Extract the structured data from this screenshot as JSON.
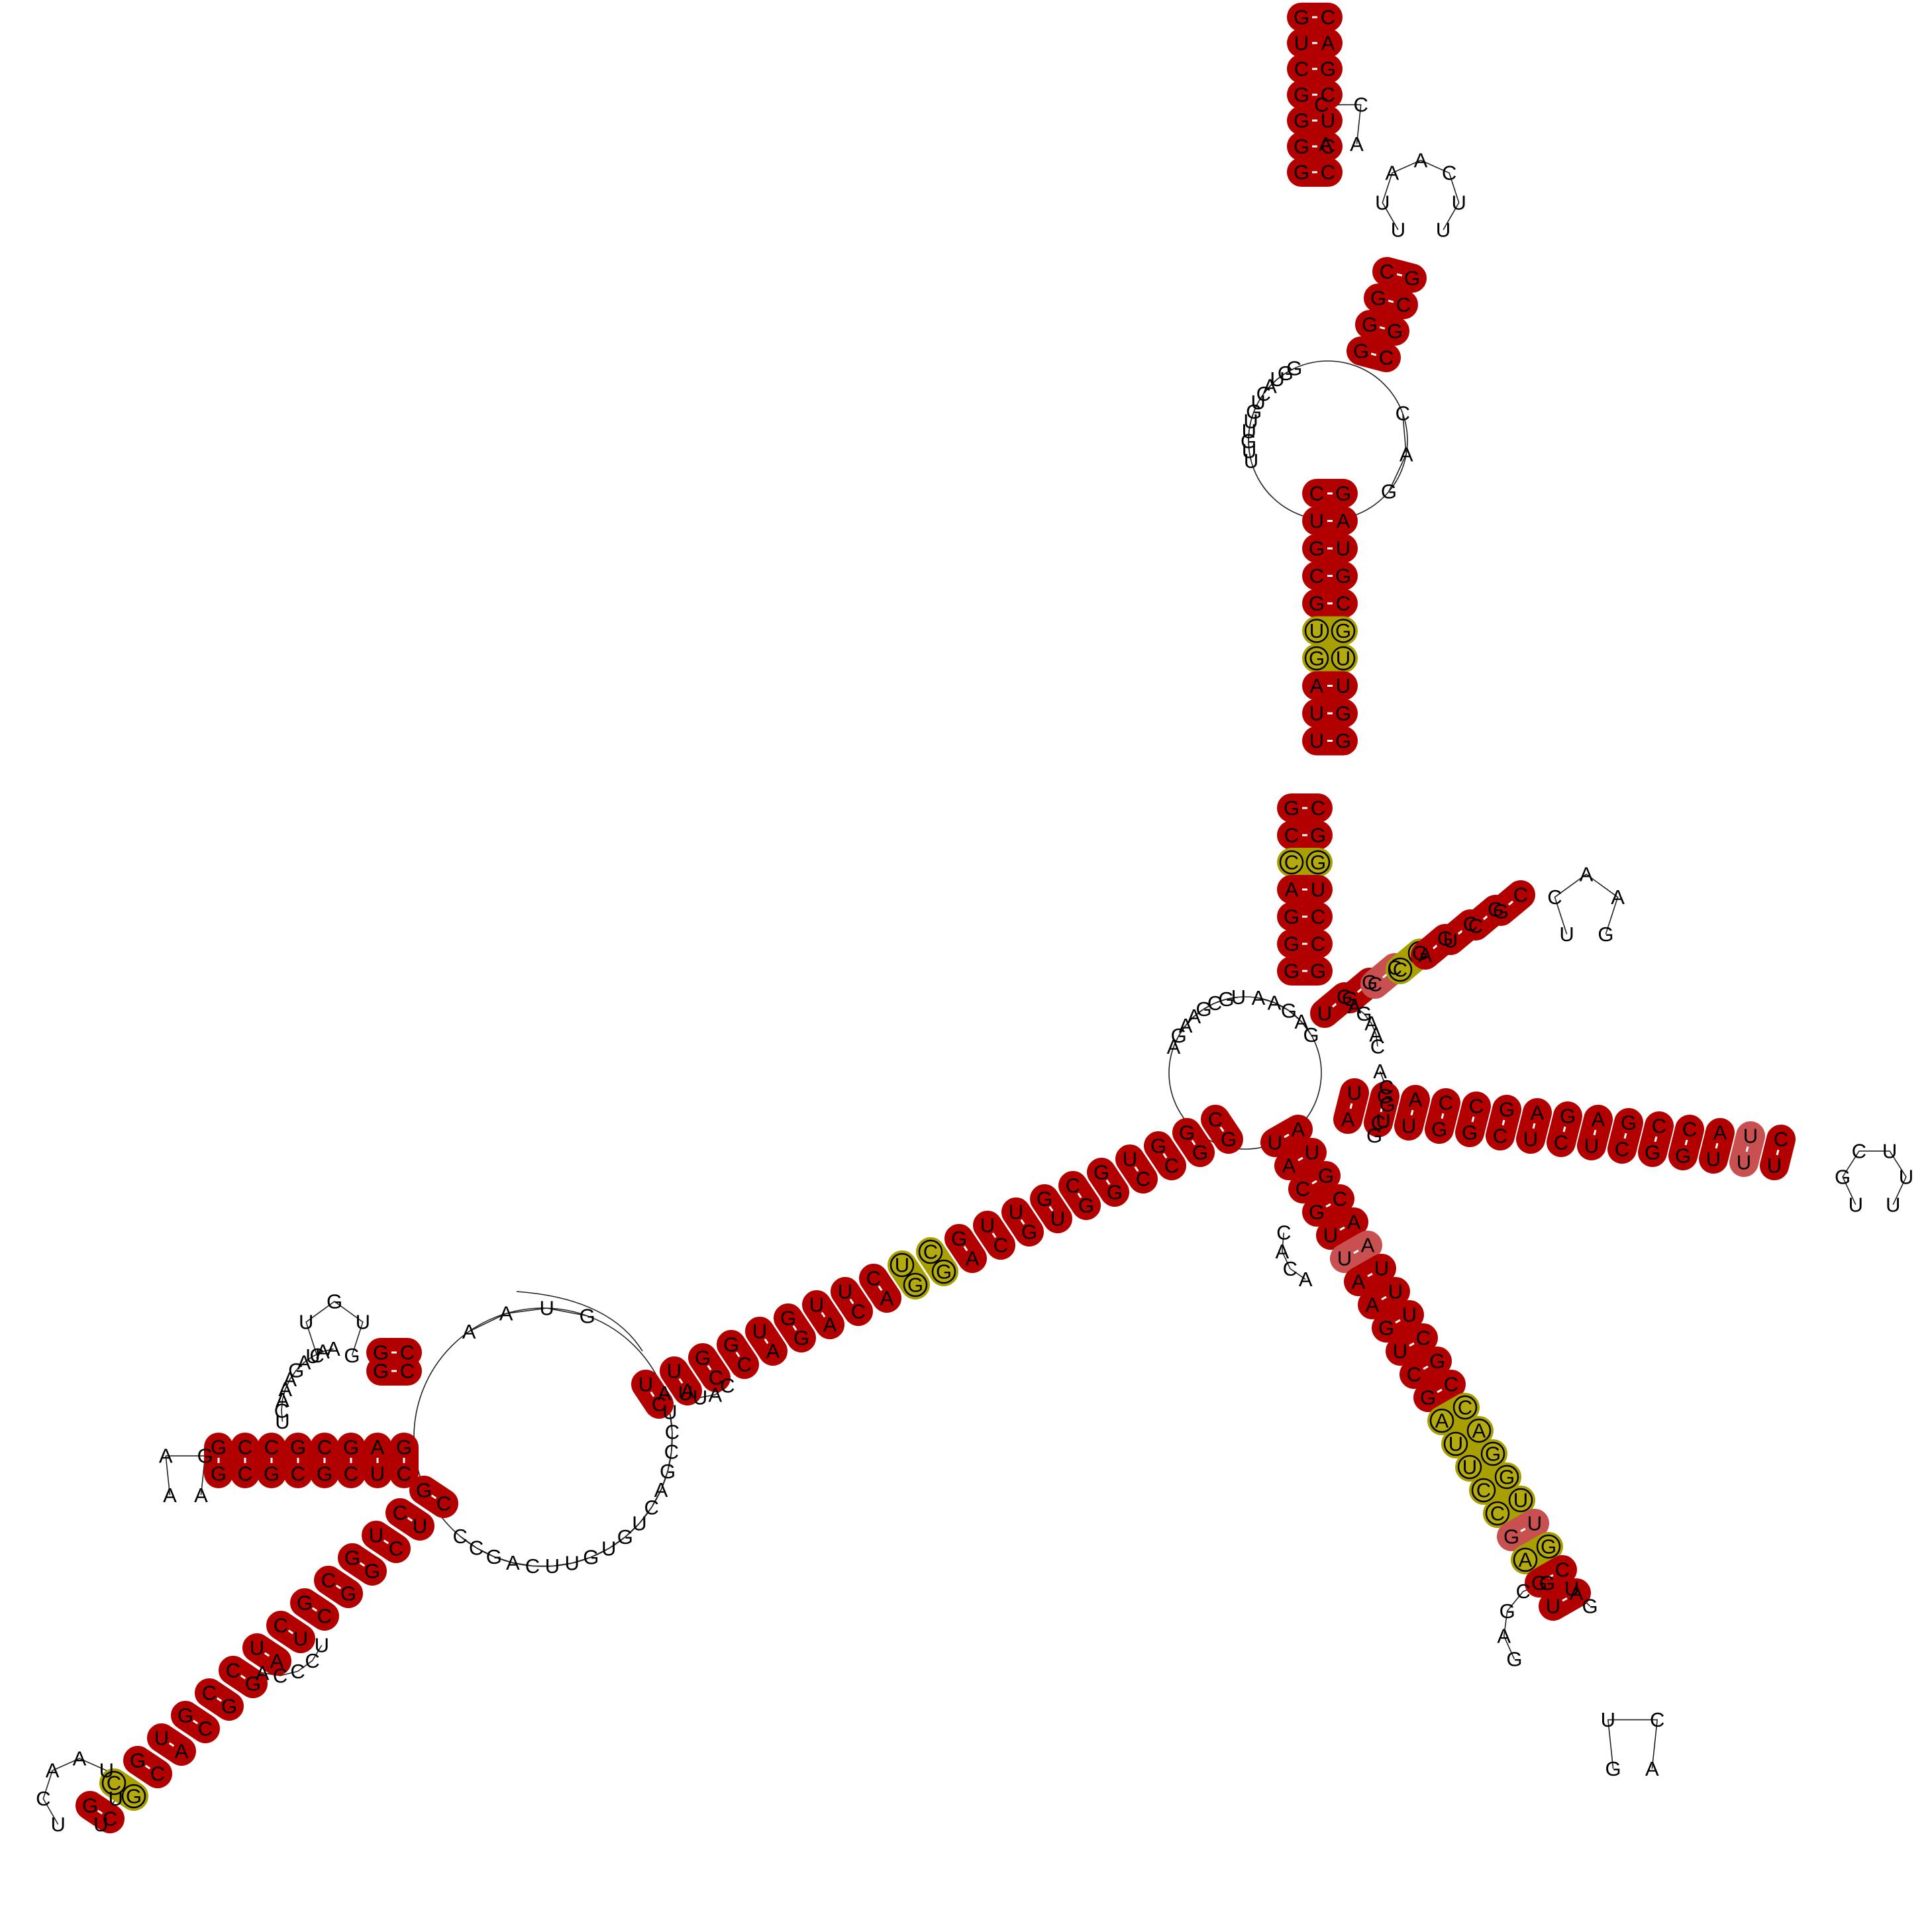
{
  "colors": {
    "pair": "#b20000",
    "weak_pair": "#c85050",
    "gu_pair": "#a8a000",
    "background": "#ffffff",
    "backbone": "#222222"
  },
  "helices": [
    {
      "id": "upper-hairpin-left",
      "pairs": [
        [
          "G",
          "C"
        ],
        [
          "G",
          "C"
        ],
        [
          "G",
          "U"
        ],
        [
          "G",
          "C"
        ],
        [
          "C",
          "G"
        ],
        [
          "U",
          "A"
        ],
        [
          "G",
          "C"
        ]
      ],
      "styles": [
        "full",
        "full",
        "full",
        "full",
        "full",
        "full",
        "full"
      ],
      "loop": "ACCA"
    },
    {
      "id": "upper-hairpin-right",
      "pairs": [
        [
          "G",
          "C"
        ],
        [
          "G",
          "G"
        ],
        [
          "G",
          "C"
        ],
        [
          "C",
          "G"
        ]
      ],
      "styles": [
        "full",
        "full",
        "full",
        "full"
      ],
      "loop": "UUAACUU"
    },
    {
      "id": "upper-stem-top",
      "pairs": [
        [
          "C",
          "G"
        ],
        [
          "U",
          "A"
        ],
        [
          "G",
          "U"
        ],
        [
          "C",
          "G"
        ],
        [
          "G",
          "C"
        ],
        [
          "U",
          "G"
        ],
        [
          "G",
          "U"
        ],
        [
          "A",
          "U"
        ],
        [
          "U",
          "G"
        ],
        [
          "U",
          "G"
        ]
      ],
      "styles": [
        "full",
        "full",
        "full",
        "full",
        "full",
        "gu",
        "gu",
        "full",
        "full",
        "full"
      ],
      "loop": ""
    },
    {
      "id": "upper-stem-bottom",
      "pairs": [
        [
          "G",
          "C"
        ],
        [
          "C",
          "G"
        ],
        [
          "C",
          "G"
        ],
        [
          "A",
          "U"
        ],
        [
          "G",
          "C"
        ],
        [
          "G",
          "C"
        ],
        [
          "G",
          "G"
        ]
      ],
      "styles": [
        "full",
        "full",
        "gu",
        "full",
        "full",
        "full",
        "full"
      ],
      "loop": ""
    },
    {
      "id": "right-upper-hairpin",
      "pairs": [
        [
          "U",
          "G"
        ],
        [
          "G",
          "G"
        ],
        [
          "C",
          "C"
        ],
        [
          "C",
          "G"
        ],
        [
          "A",
          "G"
        ],
        [
          "U",
          "C"
        ],
        [
          "C",
          "G"
        ],
        [
          "G",
          "C"
        ]
      ],
      "styles": [
        "full",
        "full",
        "light",
        "gu",
        "full",
        "full",
        "full",
        "full"
      ],
      "loop": "UCAAG"
    },
    {
      "id": "right-hairpin",
      "pairs": [
        [
          "U",
          "A"
        ],
        [
          "G",
          "C"
        ],
        [
          "A",
          "U"
        ],
        [
          "C",
          "G"
        ],
        [
          "C",
          "G"
        ],
        [
          "G",
          "C"
        ],
        [
          "A",
          "U"
        ],
        [
          "G",
          "C"
        ],
        [
          "A",
          "U"
        ],
        [
          "G",
          "C"
        ],
        [
          "C",
          "G"
        ],
        [
          "C",
          "G"
        ],
        [
          "A",
          "U"
        ],
        [
          "U",
          "U"
        ],
        [
          "C",
          "U"
        ]
      ],
      "styles": [
        "full",
        "full",
        "full",
        "full",
        "full",
        "full",
        "full",
        "full",
        "full",
        "full",
        "full",
        "full",
        "full",
        "light",
        "full"
      ],
      "loop": "UGCUUU"
    },
    {
      "id": "lower-right-hairpin",
      "pairs": [
        [
          "U",
          "A"
        ],
        [
          "A",
          "U"
        ],
        [
          "C",
          "G"
        ],
        [
          "G",
          "C"
        ],
        [
          "U",
          "A"
        ],
        [
          "U",
          "A"
        ],
        [
          "A",
          "U"
        ],
        [
          "A",
          "U"
        ],
        [
          "G",
          "U"
        ],
        [
          "U",
          "C"
        ],
        [
          "C",
          "G"
        ],
        [
          "G",
          "C"
        ],
        [
          "A",
          "C"
        ],
        [
          "U",
          "A"
        ],
        [
          "U",
          "G"
        ],
        [
          "C",
          "G"
        ],
        [
          "C",
          "U"
        ],
        [
          "G",
          "U"
        ],
        [
          "A",
          "G"
        ],
        [
          "G",
          "C"
        ],
        [
          "U",
          "A"
        ]
      ],
      "styles": [
        "full",
        "full",
        "full",
        "full",
        "full",
        "light",
        "full",
        "full",
        "full",
        "full",
        "full",
        "full",
        "gu",
        "gu",
        "gu",
        "gu",
        "gu",
        "light",
        "gu",
        "full",
        "full"
      ],
      "loop": "GUCA"
    },
    {
      "id": "long-left-stem",
      "pairs": [
        [
          "G",
          "C"
        ],
        [
          "G",
          "G"
        ],
        [
          "C",
          "G"
        ],
        [
          "C",
          "U"
        ],
        [
          "G",
          "G"
        ],
        [
          "G",
          "C"
        ],
        [
          "U",
          "G"
        ],
        [
          "G",
          "U"
        ],
        [
          "C",
          "U"
        ],
        [
          "A",
          "G"
        ],
        [
          "G",
          "C"
        ],
        [
          "G",
          "U"
        ],
        [
          "A",
          "C"
        ],
        [
          "C",
          "U"
        ],
        [
          "A",
          "U"
        ],
        [
          "G",
          "G"
        ],
        [
          "A",
          "U"
        ],
        [
          "C",
          "G"
        ],
        [
          "C",
          "G"
        ],
        [
          "A",
          "U"
        ],
        [
          "C",
          "U"
        ]
      ],
      "styles": [
        "full",
        "full",
        "full",
        "full",
        "full",
        "full",
        "full",
        "full",
        "full",
        "full",
        "gu",
        "gu",
        "full",
        "full",
        "full",
        "full",
        "full",
        "full",
        "full",
        "full",
        "full"
      ],
      "loop": ""
    },
    {
      "id": "left-upper-hairpin",
      "pairs": [
        [
          "G",
          "C"
        ],
        [
          "G",
          "C"
        ]
      ],
      "styles": [
        "full",
        "full"
      ],
      "loop": "CUGUG"
    },
    {
      "id": "left-middle-hairpin",
      "pairs": [
        [
          "G",
          "C"
        ],
        [
          "A",
          "U"
        ],
        [
          "G",
          "C"
        ],
        [
          "C",
          "G"
        ],
        [
          "G",
          "C"
        ],
        [
          "C",
          "G"
        ],
        [
          "C",
          "C"
        ],
        [
          "G",
          "G"
        ]
      ],
      "styles": [
        "full",
        "full",
        "full",
        "full",
        "full",
        "full",
        "full",
        "full"
      ],
      "loop": "AAGA"
    },
    {
      "id": "left-long-hairpin",
      "pairs": [
        [
          "G",
          "C"
        ],
        [
          "C",
          "U"
        ],
        [
          "U",
          "C"
        ],
        [
          "G",
          "G"
        ],
        [
          "C",
          "G"
        ],
        [
          "G",
          "C"
        ],
        [
          "C",
          "U"
        ],
        [
          "U",
          "A"
        ],
        [
          "C",
          "G"
        ],
        [
          "C",
          "G"
        ],
        [
          "G",
          "C"
        ],
        [
          "U",
          "A"
        ],
        [
          "G",
          "C"
        ],
        [
          "C",
          "G"
        ],
        [
          "G",
          "C"
        ]
      ],
      "styles": [
        "full",
        "full",
        "full",
        "full",
        "full",
        "full",
        "full",
        "full",
        "full",
        "full",
        "full",
        "full",
        "full",
        "gu",
        "full"
      ],
      "loop": "UCAAUUU"
    }
  ],
  "free_bases": [
    {
      "id": "multiloop-left",
      "seq": "AGAAGCGU"
    },
    {
      "id": "multiloop-bridge",
      "seq": "AAGAG"
    },
    {
      "id": "junction-right-1",
      "seq": "AGAAC"
    },
    {
      "id": "junction-right-2",
      "seq": "ACGUG"
    },
    {
      "id": "junction-lower",
      "seq": "ACAC"
    },
    {
      "id": "lower-right-loop",
      "seq": "GAGCGUG"
    },
    {
      "id": "big-loop-top",
      "seq": "AAUG"
    },
    {
      "id": "big-loop-bottom",
      "seq": "AUCCGACUGUGUUCAGCC"
    },
    {
      "id": "inner-loop-left",
      "seq": "CAUU"
    },
    {
      "id": "upper-loop-left",
      "seq": "UUGUUGUCAUGG"
    },
    {
      "id": "upper-loop-right",
      "seq": "CAG"
    },
    {
      "id": "stack-ladder",
      "seq": "UCAAAGAUAA"
    },
    {
      "id": "left-stem-tail",
      "seq": "UCCCA"
    }
  ]
}
